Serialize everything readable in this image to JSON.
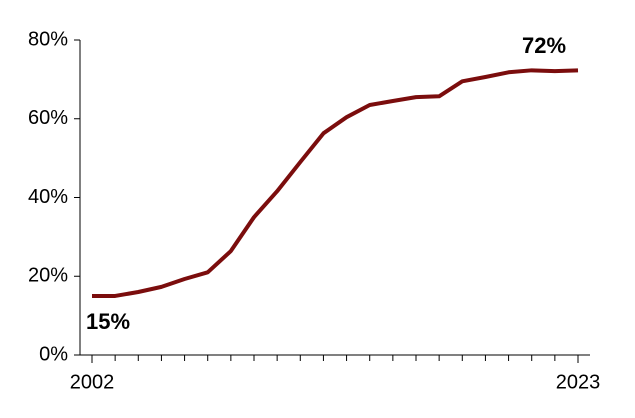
{
  "chart_data": {
    "type": "line",
    "x": [
      2002,
      2003,
      2004,
      2005,
      2006,
      2007,
      2008,
      2009,
      2010,
      2011,
      2012,
      2013,
      2014,
      2015,
      2016,
      2017,
      2018,
      2019,
      2020,
      2021,
      2022,
      2023
    ],
    "series": [
      {
        "color": "#7b0d0d",
        "values": [
          15,
          15,
          16,
          17.3,
          19.3,
          21,
          26.4,
          35,
          41.6,
          49,
          56.3,
          60.4,
          63.5,
          64.5,
          65.5,
          65.7,
          69.5,
          70.6,
          71.8,
          72.3,
          72.1,
          72.3
        ],
        "value_labels": [
          "15%",
          null,
          null,
          null,
          null,
          null,
          null,
          null,
          null,
          null,
          null,
          null,
          null,
          null,
          null,
          null,
          null,
          null,
          null,
          null,
          null,
          "72%"
        ]
      }
    ],
    "xlim": [
      2002,
      2023
    ],
    "xticks": [
      2002,
      2023
    ],
    "ylim": [
      0,
      80
    ],
    "yticks": [
      {
        "value": 0,
        "label": "0%"
      },
      {
        "value": 20,
        "label": "20%"
      },
      {
        "value": 40,
        "label": "40%"
      },
      {
        "value": 60,
        "label": "60%"
      },
      {
        "value": 80,
        "label": "80%"
      }
    ]
  }
}
